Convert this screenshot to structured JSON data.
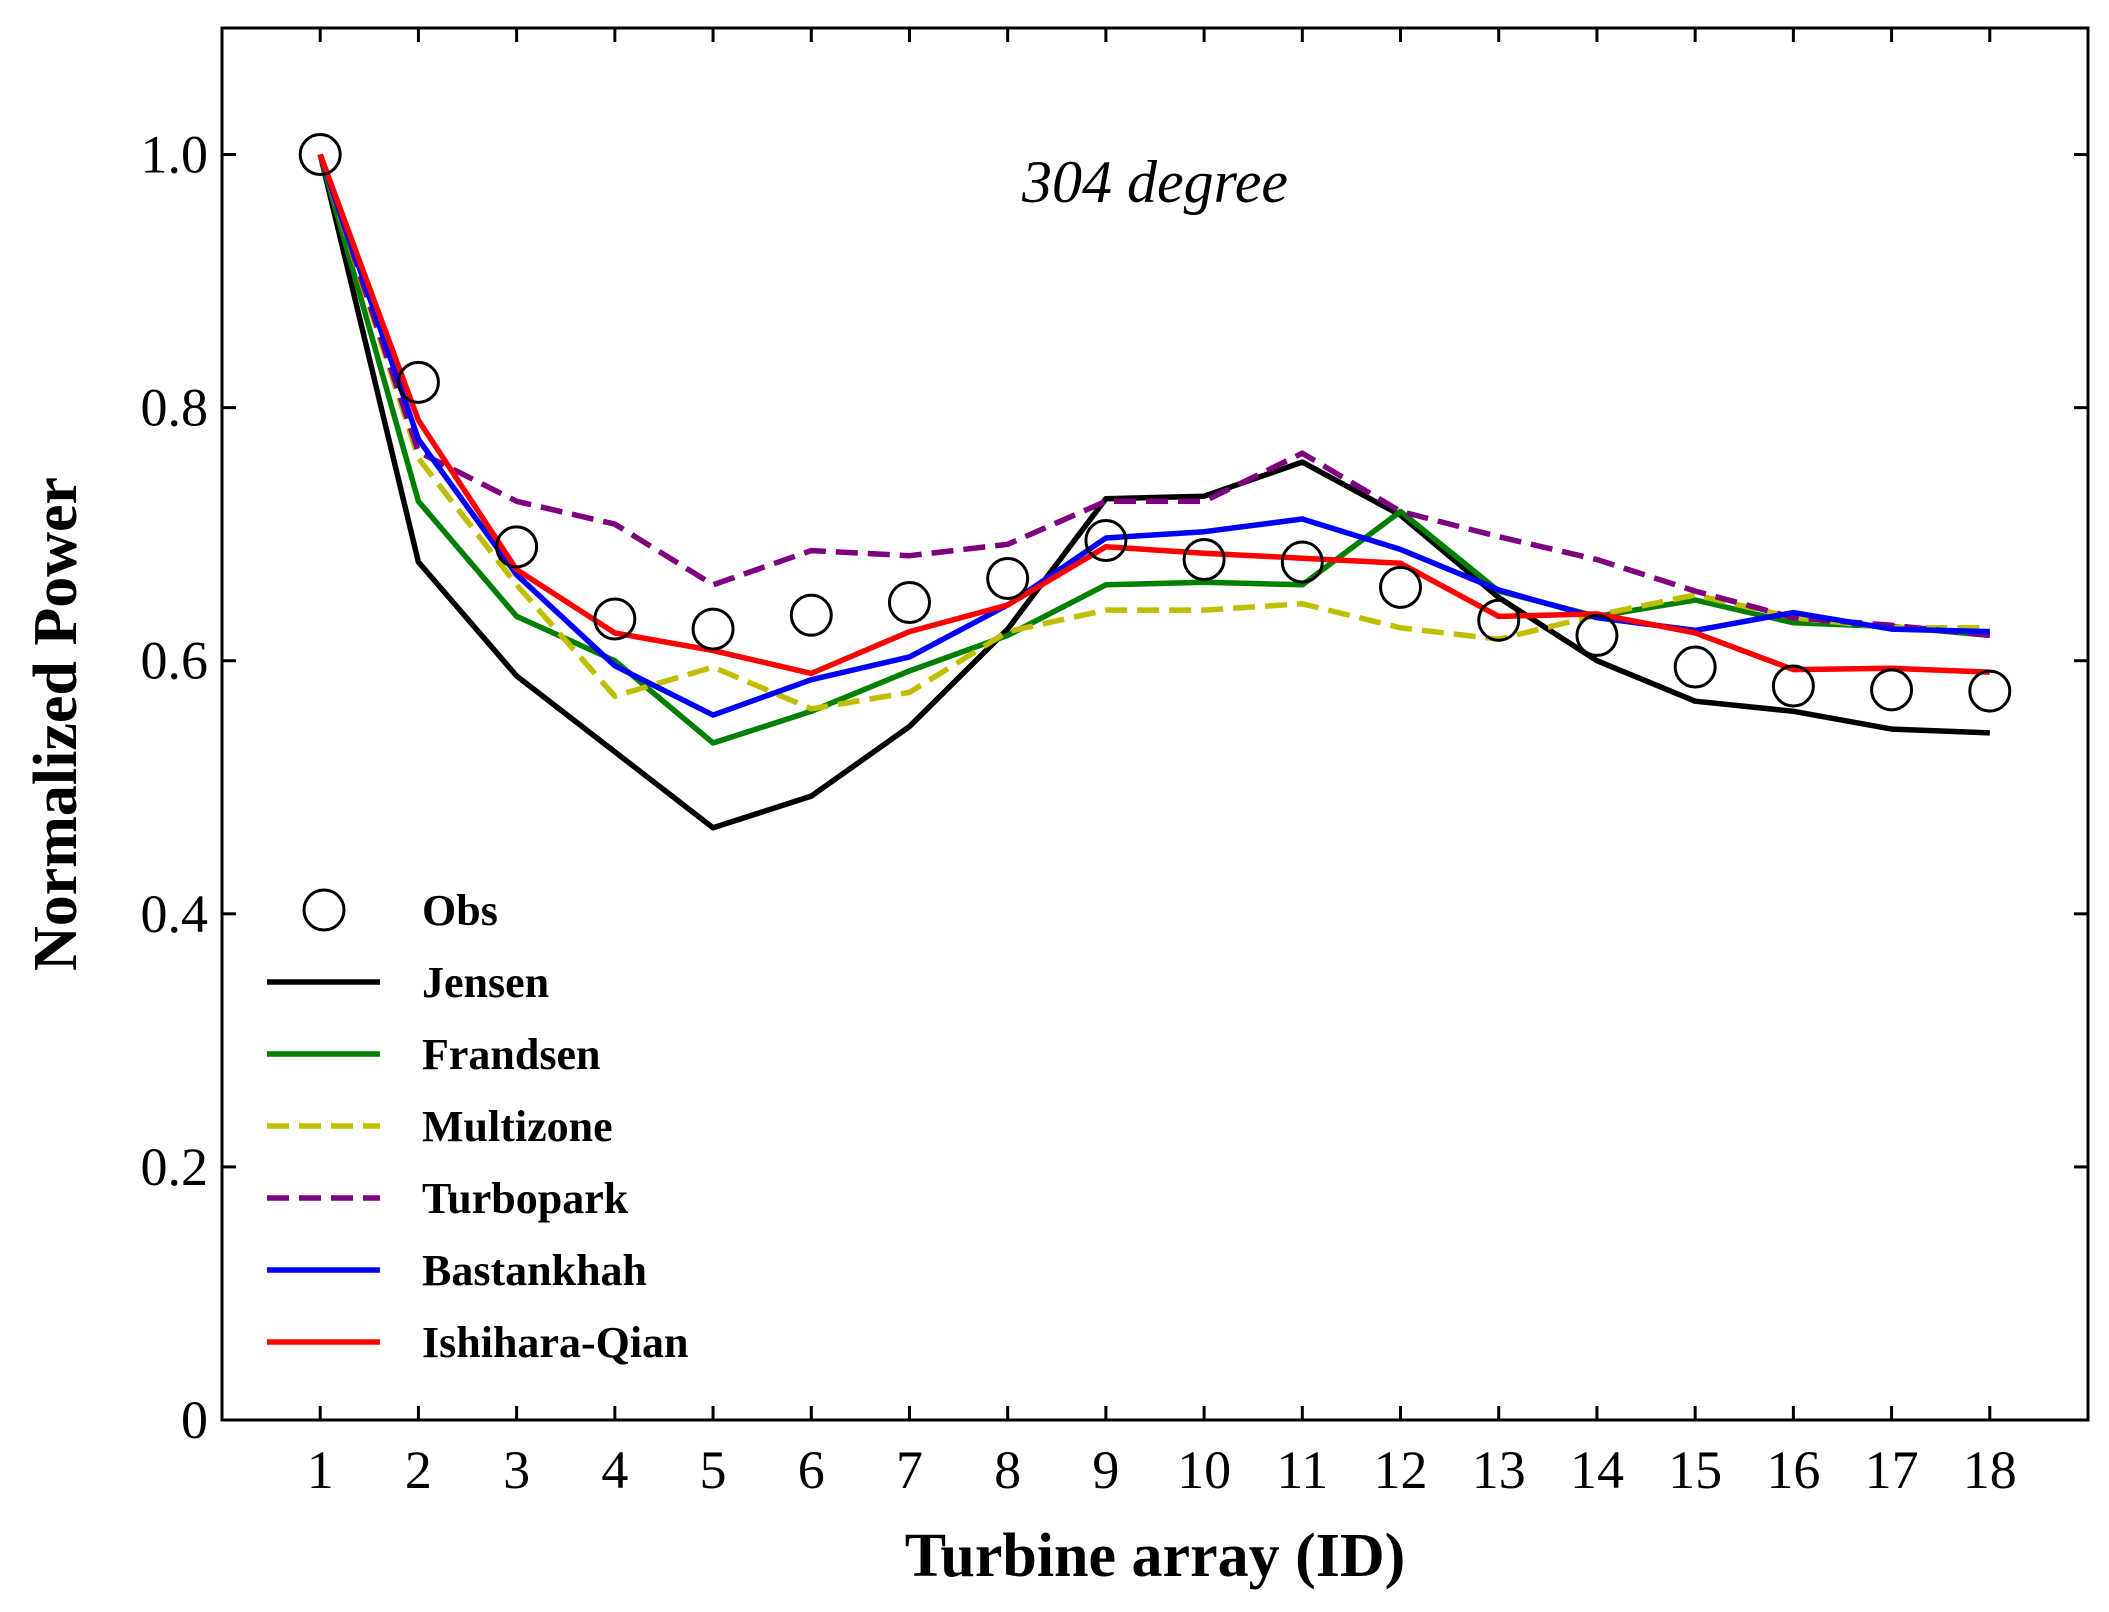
{
  "chart_data": {
    "type": "line",
    "annotation": "304 degree",
    "xlabel": "Turbine array (ID)",
    "ylabel": "Normalized Power",
    "xlim": [
      0,
      19
    ],
    "ylim": [
      0,
      1.1
    ],
    "categories": [
      "1",
      "2",
      "3",
      "4",
      "5",
      "6",
      "7",
      "8",
      "9",
      "10",
      "11",
      "12",
      "13",
      "14",
      "15",
      "16",
      "17",
      "18"
    ],
    "y_ticks": [
      {
        "value": 0,
        "label": "0"
      },
      {
        "value": 0.2,
        "label": "0.2"
      },
      {
        "value": 0.4,
        "label": "0.4"
      },
      {
        "value": 0.6,
        "label": "0.6"
      },
      {
        "value": 0.8,
        "label": "0.8"
      },
      {
        "value": 1.0,
        "label": "1.0"
      }
    ],
    "grid": false,
    "legend_position": "lower-left",
    "series": [
      {
        "name": "Obs",
        "style": "marker",
        "color": "#000000",
        "values": [
          1.0,
          0.82,
          0.69,
          0.633,
          0.625,
          0.636,
          0.646,
          0.665,
          0.695,
          0.68,
          0.678,
          0.658,
          0.632,
          0.62,
          0.595,
          0.58,
          0.577,
          0.576
        ]
      },
      {
        "name": "Jensen",
        "style": "solid",
        "color": "#000000",
        "values": [
          1.0,
          0.678,
          0.588,
          0.528,
          0.468,
          0.493,
          0.548,
          0.625,
          0.728,
          0.73,
          0.757,
          0.715,
          0.65,
          0.6,
          0.568,
          0.56,
          0.546,
          0.543
        ]
      },
      {
        "name": "Frandsen",
        "style": "solid",
        "color": "#007f00",
        "values": [
          1.0,
          0.726,
          0.635,
          0.6,
          0.535,
          0.56,
          0.592,
          0.62,
          0.66,
          0.662,
          0.66,
          0.718,
          0.655,
          0.635,
          0.648,
          0.63,
          0.627,
          0.62
        ]
      },
      {
        "name": "Multizone",
        "style": "dashed",
        "color": "#bfbf00",
        "values": [
          1.0,
          0.76,
          0.66,
          0.572,
          0.595,
          0.562,
          0.575,
          0.623,
          0.64,
          0.64,
          0.645,
          0.626,
          0.617,
          0.636,
          0.652,
          0.634,
          0.626,
          0.626
        ]
      },
      {
        "name": "Turbopark",
        "style": "dashed",
        "color": "#7f007f",
        "values": [
          1.0,
          0.765,
          0.726,
          0.708,
          0.66,
          0.687,
          0.683,
          0.692,
          0.726,
          0.726,
          0.764,
          0.718,
          0.698,
          0.68,
          0.655,
          0.634,
          0.628,
          0.62
        ]
      },
      {
        "name": "Bastankhah",
        "style": "solid",
        "color": "#0000ff",
        "values": [
          1.0,
          0.775,
          0.668,
          0.596,
          0.557,
          0.585,
          0.603,
          0.644,
          0.697,
          0.702,
          0.712,
          0.688,
          0.656,
          0.634,
          0.624,
          0.638,
          0.625,
          0.623
        ]
      },
      {
        "name": "Ishihara-Qian",
        "style": "solid",
        "color": "#ff0000",
        "values": [
          1.0,
          0.79,
          0.672,
          0.622,
          0.608,
          0.59,
          0.623,
          0.644,
          0.69,
          0.685,
          0.681,
          0.677,
          0.635,
          0.637,
          0.622,
          0.593,
          0.594,
          0.591
        ]
      }
    ]
  }
}
